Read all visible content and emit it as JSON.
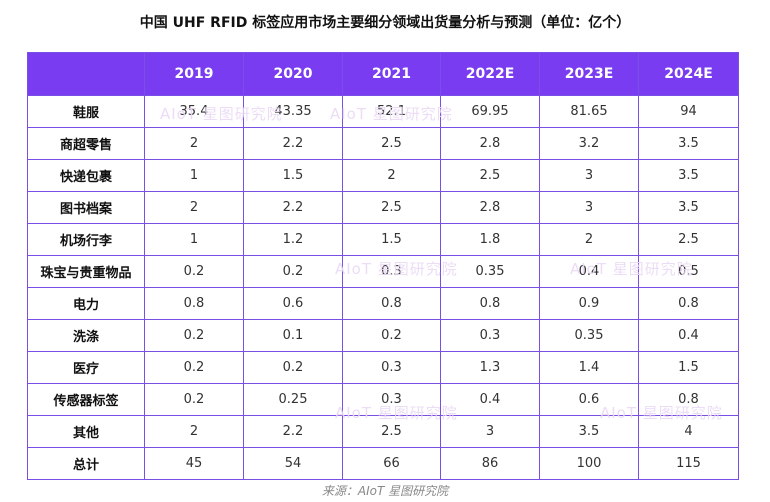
{
  "title": "中国 UHF RFID 标签应用市场主要细分领域出货量分析与预测（单位：亿个）",
  "source": "来源：AIoT 星图研究院",
  "watermark": "AIoT 星图研究院",
  "colors": {
    "header_bg": "#7a3cf0",
    "border": "#7a4fe6",
    "header_text": "#ffffff"
  },
  "chart_data": {
    "type": "table",
    "title": "中国 UHF RFID 标签应用市场主要细分领域出货量分析与预测（单位：亿个）",
    "columns": [
      "2019",
      "2020",
      "2021",
      "2022E",
      "2023E",
      "2024E"
    ],
    "rows": [
      {
        "label": "鞋服",
        "values": [
          "35.4",
          "43.35",
          "52.1",
          "69.95",
          "81.65",
          "94"
        ]
      },
      {
        "label": "商超零售",
        "values": [
          "2",
          "2.2",
          "2.5",
          "2.8",
          "3.2",
          "3.5"
        ]
      },
      {
        "label": "快递包裹",
        "values": [
          "1",
          "1.5",
          "2",
          "2.5",
          "3",
          "3.5"
        ]
      },
      {
        "label": "图书档案",
        "values": [
          "2",
          "2.2",
          "2.5",
          "2.8",
          "3",
          "3.5"
        ]
      },
      {
        "label": "机场行李",
        "values": [
          "1",
          "1.2",
          "1.5",
          "1.8",
          "2",
          "2.5"
        ]
      },
      {
        "label": "珠宝与贵重物品",
        "values": [
          "0.2",
          "0.2",
          "0.3",
          "0.35",
          "0.4",
          "0.5"
        ]
      },
      {
        "label": "电力",
        "values": [
          "0.8",
          "0.6",
          "0.8",
          "0.8",
          "0.9",
          "0.8"
        ]
      },
      {
        "label": "洗涤",
        "values": [
          "0.2",
          "0.1",
          "0.2",
          "0.3",
          "0.35",
          "0.4"
        ]
      },
      {
        "label": "医疗",
        "values": [
          "0.2",
          "0.2",
          "0.3",
          "1.3",
          "1.4",
          "1.5"
        ]
      },
      {
        "label": "传感器标签",
        "values": [
          "0.2",
          "0.25",
          "0.3",
          "0.4",
          "0.6",
          "0.8"
        ]
      },
      {
        "label": "其他",
        "values": [
          "2",
          "2.2",
          "2.5",
          "3",
          "3.5",
          "4"
        ]
      },
      {
        "label": "总计",
        "values": [
          "45",
          "54",
          "66",
          "86",
          "100",
          "115"
        ]
      }
    ]
  }
}
